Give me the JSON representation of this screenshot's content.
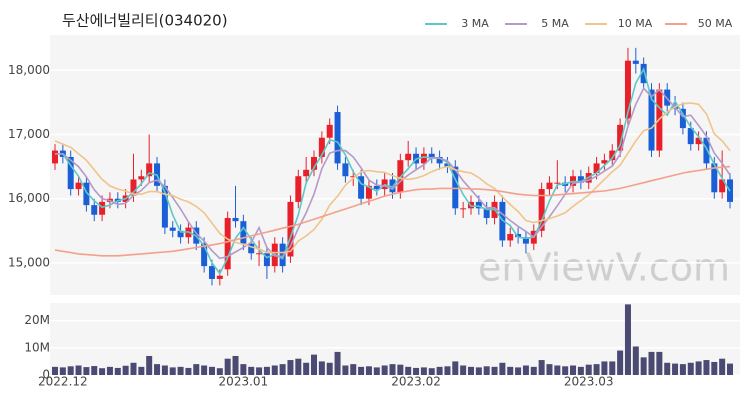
{
  "chart_data": {
    "type": "candlestick",
    "title": "두산에너빌리티(034020)",
    "watermark": "enViewV.com",
    "categories": [
      null,
      "2022.12",
      null,
      null,
      null,
      null,
      null,
      null,
      null,
      null,
      null,
      null,
      null,
      null,
      null,
      null,
      null,
      null,
      null,
      null,
      null,
      null,
      null,
      null,
      "2023.01",
      null,
      null,
      null,
      null,
      null,
      null,
      null,
      null,
      null,
      null,
      null,
      null,
      null,
      null,
      null,
      null,
      null,
      null,
      null,
      null,
      null,
      "2023.02",
      null,
      null,
      null,
      null,
      null,
      null,
      null,
      null,
      null,
      null,
      null,
      null,
      null,
      null,
      null,
      null,
      null,
      null,
      null,
      null,
      null,
      "2023.03",
      null,
      null,
      null,
      null,
      null,
      null,
      null,
      null,
      null,
      null,
      null,
      null,
      null,
      null,
      null,
      null,
      null,
      null
    ],
    "open": [
      16550,
      16750,
      16650,
      16150,
      16250,
      15900,
      15750,
      15950,
      16000,
      15950,
      16050,
      16300,
      16350,
      16550,
      16200,
      15550,
      15500,
      15400,
      15550,
      15300,
      14950,
      14750,
      14900,
      15700,
      15650,
      15300,
      15150,
      15150,
      14950,
      15300,
      15100,
      15950,
      16350,
      16450,
      16650,
      16950,
      17350,
      16550,
      16350,
      16350,
      16000,
      16200,
      16150,
      16300,
      16100,
      16600,
      16700,
      16550,
      16700,
      16650,
      16550,
      16500,
      15850,
      15850,
      15950,
      15850,
      15700,
      15950,
      15350,
      15450,
      15400,
      15300,
      15500,
      16150,
      16250,
      16250,
      16200,
      16350,
      16250,
      16400,
      16550,
      16600,
      16750,
      17250,
      18150,
      18100,
      17700,
      16750,
      17700,
      17450,
      17400,
      17100,
      16850,
      16950,
      16550,
      16100,
      16300
    ],
    "high": [
      16850,
      16850,
      16750,
      16350,
      16350,
      16000,
      16050,
      16100,
      16100,
      16150,
      16700,
      16450,
      17000,
      16650,
      16300,
      15650,
      15600,
      15650,
      15650,
      15400,
      15050,
      14900,
      15800,
      16200,
      15750,
      15400,
      15350,
      15250,
      15400,
      15400,
      16050,
      16450,
      16650,
      16750,
      17050,
      17250,
      17450,
      16650,
      16450,
      16450,
      16300,
      16300,
      16400,
      16400,
      16700,
      16900,
      16800,
      16800,
      16800,
      16750,
      16650,
      16600,
      15950,
      16050,
      16050,
      15950,
      16050,
      16050,
      15550,
      15550,
      15500,
      15600,
      16250,
      16350,
      16600,
      16350,
      16450,
      16450,
      16500,
      16650,
      16700,
      16850,
      17250,
      18350,
      18350,
      18200,
      17800,
      17800,
      17800,
      17600,
      17500,
      17200,
      17050,
      17050,
      16650,
      16750,
      16400
    ],
    "low": [
      16450,
      16550,
      16050,
      16050,
      15800,
      15650,
      15650,
      15850,
      15850,
      15850,
      15950,
      16200,
      16250,
      16100,
      15450,
      15400,
      15300,
      15300,
      15200,
      14850,
      14650,
      14650,
      14800,
      15550,
      15200,
      15050,
      14950,
      14750,
      14850,
      14850,
      15000,
      15850,
      16250,
      16350,
      16550,
      16850,
      16450,
      16250,
      16200,
      15900,
      15900,
      16050,
      16050,
      16000,
      16000,
      16500,
      16450,
      16450,
      16550,
      16450,
      16400,
      15750,
      15700,
      15750,
      15750,
      15600,
      15600,
      15250,
      15250,
      15300,
      15150,
      15200,
      15400,
      16050,
      16150,
      16100,
      16100,
      16150,
      16150,
      16300,
      16450,
      16500,
      16650,
      17150,
      17950,
      17700,
      16650,
      16650,
      17350,
      17300,
      17000,
      16750,
      16750,
      16450,
      16000,
      16000,
      15850
    ],
    "close": [
      16750,
      16650,
      16150,
      16250,
      15900,
      15750,
      15950,
      16000,
      15950,
      16050,
      16300,
      16350,
      16550,
      16200,
      15550,
      15500,
      15400,
      15550,
      15300,
      14950,
      14750,
      14800,
      15700,
      15650,
      15300,
      15150,
      15150,
      14950,
      15300,
      14950,
      15950,
      16350,
      16450,
      16650,
      16950,
      17150,
      16550,
      16350,
      16350,
      16000,
      16200,
      16150,
      16300,
      16100,
      16600,
      16700,
      16550,
      16700,
      16650,
      16550,
      16500,
      15850,
      15850,
      15950,
      15850,
      15700,
      15950,
      15350,
      15450,
      15400,
      15300,
      15500,
      16150,
      16250,
      16250,
      16200,
      16350,
      16250,
      16400,
      16550,
      16600,
      16750,
      17150,
      18150,
      18100,
      17800,
      16750,
      17700,
      17450,
      17400,
      17100,
      16850,
      16950,
      16550,
      16100,
      16300,
      15950
    ],
    "up_color": "#e8202a",
    "down_color": "#1a5fd6",
    "ylim": [
      14500,
      18550
    ],
    "yticks": [
      {
        "value": 15000,
        "label": "15,000"
      },
      {
        "value": 16000,
        "label": "16,000"
      },
      {
        "value": 17000,
        "label": "17,000"
      },
      {
        "value": 18000,
        "label": "18,000"
      }
    ],
    "grid": true,
    "legend": "top-right",
    "series": [
      {
        "name": "3 MA",
        "color": "#5ec8c8",
        "values": [
          16700,
          16700,
          16517,
          16350,
          16100,
          15967,
          15867,
          15900,
          15967,
          16000,
          16100,
          16233,
          16400,
          16367,
          16100,
          15750,
          15483,
          15483,
          15417,
          15267,
          15000,
          14833,
          15083,
          15383,
          15550,
          15367,
          15200,
          15083,
          15133,
          15067,
          15400,
          15750,
          16250,
          16483,
          16683,
          16917,
          16883,
          16683,
          16417,
          16233,
          16183,
          16117,
          16217,
          16183,
          16333,
          16467,
          16617,
          16650,
          16633,
          16633,
          16567,
          16300,
          16067,
          15883,
          15883,
          15833,
          15833,
          15667,
          15583,
          15400,
          15383,
          15400,
          15650,
          15967,
          16217,
          16233,
          16267,
          16267,
          16333,
          16400,
          16517,
          16633,
          16833,
          17350,
          17800,
          18017,
          17550,
          17417,
          17300,
          17517,
          17317,
          17117,
          16967,
          16783,
          16533,
          16317,
          16117
        ]
      },
      {
        "name": "5 MA",
        "color": "#b39ac8",
        "values": [
          16700,
          16700,
          16600,
          16500,
          16340,
          16140,
          16000,
          15970,
          15910,
          15930,
          16050,
          16130,
          16250,
          16290,
          16190,
          16020,
          15840,
          15640,
          15460,
          15340,
          15190,
          15070,
          15100,
          15170,
          15240,
          15320,
          15550,
          15240,
          15110,
          15100,
          15260,
          15540,
          15780,
          16070,
          16470,
          16710,
          16750,
          16750,
          16650,
          16480,
          16290,
          16210,
          16200,
          16150,
          16270,
          16370,
          16450,
          16530,
          16640,
          16630,
          16590,
          16450,
          16280,
          16140,
          16000,
          15860,
          15860,
          15760,
          15660,
          15570,
          15490,
          15400,
          15560,
          15720,
          15890,
          16070,
          16240,
          16260,
          16290,
          16350,
          16430,
          16510,
          16690,
          17130,
          17470,
          17720,
          17590,
          17700,
          17560,
          17420,
          17280,
          17300,
          17140,
          16970,
          16710,
          16550,
          16370
        ]
      },
      {
        "name": "10 MA",
        "color": "#f0c48a",
        "values": [
          16900,
          16850,
          16800,
          16700,
          16600,
          16450,
          16300,
          16200,
          16150,
          16120,
          16070,
          16070,
          16110,
          16110,
          16070,
          16050,
          15990,
          15950,
          15880,
          15780,
          15620,
          15460,
          15370,
          15320,
          15290,
          15250,
          15220,
          15160,
          15160,
          15160,
          15180,
          15340,
          15420,
          15520,
          15680,
          15900,
          16040,
          16210,
          16320,
          16420,
          16440,
          16420,
          16410,
          16360,
          16320,
          16300,
          16320,
          16360,
          16420,
          16470,
          16500,
          16450,
          16420,
          16400,
          16330,
          16230,
          16160,
          16030,
          15910,
          15800,
          15660,
          15630,
          15660,
          15690,
          15730,
          15780,
          15880,
          15970,
          16060,
          16180,
          16300,
          16420,
          16520,
          16710,
          16900,
          17060,
          17100,
          17240,
          17350,
          17430,
          17480,
          17490,
          17470,
          17320,
          17010,
          16900,
          16750
        ]
      },
      {
        "name": "50 MA",
        "color": "#f4a08a",
        "values": [
          15200,
          15180,
          15160,
          15140,
          15130,
          15120,
          15110,
          15110,
          15110,
          15120,
          15130,
          15140,
          15150,
          15160,
          15170,
          15180,
          15200,
          15220,
          15240,
          15260,
          15280,
          15300,
          15330,
          15360,
          15390,
          15420,
          15450,
          15480,
          15510,
          15540,
          15570,
          15600,
          15640,
          15680,
          15720,
          15760,
          15800,
          15840,
          15880,
          15920,
          15960,
          16000,
          16040,
          16070,
          16100,
          16120,
          16140,
          16150,
          16150,
          16160,
          16160,
          16160,
          16160,
          16150,
          16150,
          16140,
          16130,
          16110,
          16090,
          16070,
          16060,
          16050,
          16050,
          16050,
          16060,
          16070,
          16080,
          16090,
          16100,
          16110,
          16120,
          16140,
          16160,
          16190,
          16220,
          16250,
          16280,
          16310,
          16340,
          16370,
          16400,
          16420,
          16440,
          16460,
          16480,
          16490,
          16500
        ]
      }
    ],
    "volume": {
      "color": "#4a4a72",
      "ylim": [
        0,
        26500000
      ],
      "yticks": [
        0,
        {
          "value": 10000000,
          "label": "10M"
        },
        {
          "value": 20000000,
          "label": "20M"
        }
      ],
      "values": [
        3000000,
        2800000,
        3200000,
        3500000,
        2900000,
        3300000,
        2500000,
        3000000,
        2600000,
        3400000,
        4500000,
        3000000,
        7000000,
        4000000,
        3500000,
        2800000,
        3000000,
        2600000,
        4000000,
        3500000,
        3000000,
        2500000,
        6000000,
        7000000,
        4000000,
        3000000,
        2800000,
        3000000,
        3500000,
        4000000,
        5500000,
        6000000,
        4500000,
        7500000,
        5000000,
        4500000,
        8500000,
        3500000,
        4000000,
        3000000,
        3200000,
        2800000,
        3500000,
        4000000,
        3800000,
        3000000,
        2600000,
        2800000,
        2500000,
        3000000,
        3200000,
        5000000,
        3500000,
        3000000,
        2800000,
        3200000,
        3000000,
        4500000,
        3000000,
        2800000,
        3500000,
        3000000,
        5500000,
        4000000,
        3500000,
        3200000,
        3500000,
        3000000,
        3800000,
        4000000,
        5000000,
        5000000,
        9000000,
        26000000,
        10500000,
        6500000,
        8500000,
        8500000,
        4500000,
        4200000,
        4000000,
        4500000,
        5000000,
        5500000,
        4800000,
        6000000,
        4200000
      ]
    }
  }
}
